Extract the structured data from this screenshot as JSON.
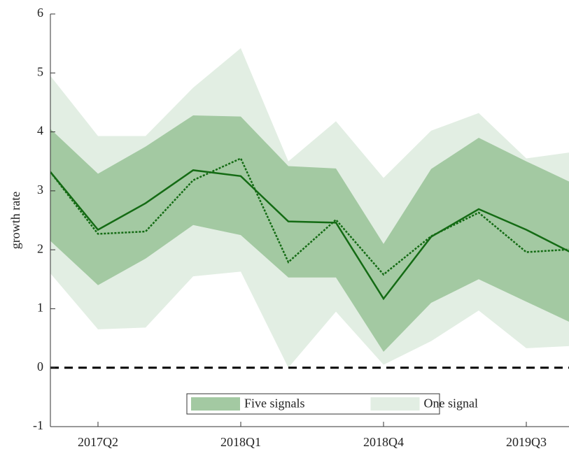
{
  "chart_data": {
    "type": "band-line",
    "y_label": "growth rate",
    "categories": [
      null,
      "2017Q2",
      null,
      null,
      "2018Q1",
      null,
      null,
      "2018Q4",
      null,
      null,
      "2019Q3",
      null
    ],
    "bands": [
      {
        "name": "One signal",
        "color": "#e2eee3",
        "upper": [
          4.95,
          3.93,
          3.93,
          4.75,
          5.42,
          3.5,
          4.18,
          3.22,
          4.02,
          4.32,
          3.55,
          3.66
        ],
        "lower": [
          1.6,
          0.65,
          0.68,
          1.55,
          1.63,
          0.0,
          0.95,
          0.05,
          0.45,
          0.97,
          0.33,
          0.37
        ]
      },
      {
        "name": "Five signals",
        "color": "#a3c9a2",
        "upper": [
          4.05,
          3.29,
          3.75,
          4.28,
          4.26,
          3.42,
          3.38,
          2.1,
          3.37,
          3.9,
          3.5,
          3.12
        ],
        "lower": [
          2.15,
          1.4,
          1.85,
          2.42,
          2.25,
          1.53,
          1.53,
          0.27,
          1.1,
          1.5,
          1.12,
          0.74
        ]
      }
    ],
    "lines": [
      {
        "color": "#146b14",
        "style": "solid",
        "values": [
          3.32,
          2.34,
          2.79,
          3.35,
          3.25,
          2.48,
          2.46,
          1.17,
          2.22,
          2.69,
          2.34,
          1.93
        ]
      },
      {
        "color": "#146b14",
        "style": "dotted",
        "values": [
          3.32,
          2.27,
          2.31,
          3.18,
          3.55,
          1.79,
          2.51,
          1.58,
          2.23,
          2.63,
          1.96,
          2.01
        ]
      }
    ],
    "hline": 0,
    "ylim": [
      -1,
      6
    ],
    "yticks": [
      -1,
      0,
      1,
      2,
      3,
      4,
      5,
      6
    ],
    "legend": "lower center",
    "legend_order": [
      1,
      0
    ]
  }
}
